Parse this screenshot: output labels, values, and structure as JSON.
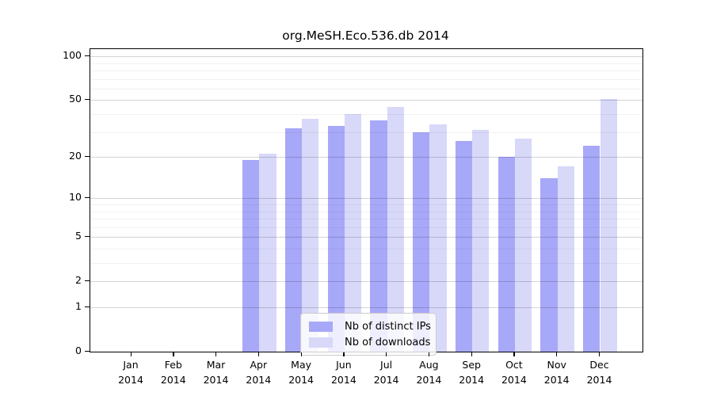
{
  "chart_data": {
    "type": "bar",
    "title": "org.MeSH.Eco.536.db 2014",
    "categories": [
      "Jan",
      "Feb",
      "Mar",
      "Apr",
      "May",
      "Jun",
      "Jul",
      "Aug",
      "Sep",
      "Oct",
      "Nov",
      "Dec"
    ],
    "year": "2014",
    "series": [
      {
        "name": "Nb of distinct IPs",
        "color": "#a8a8f8",
        "values": [
          0,
          0,
          0,
          19,
          32,
          33,
          36,
          30,
          26,
          20,
          14,
          24
        ]
      },
      {
        "name": "Nb of downloads",
        "color": "#d8d8f9",
        "values": [
          0,
          0,
          0,
          21,
          37,
          40,
          45,
          34,
          31,
          27,
          17,
          51
        ]
      }
    ],
    "xlabel": "",
    "ylabel": "",
    "yscale": "log1p",
    "ylim": [
      0,
      112
    ],
    "yticks": [
      100,
      50,
      20,
      10,
      5,
      2,
      1,
      0
    ],
    "minor_gridlines": [
      3,
      4,
      6,
      7,
      8,
      9,
      30,
      40,
      60,
      70,
      80,
      90
    ],
    "grid": true,
    "legend_position": "bottom-center-inside",
    "axis_color": "#000000",
    "background_color": "#ffffff"
  }
}
